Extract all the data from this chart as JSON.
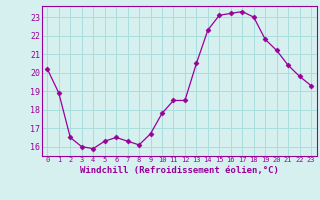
{
  "x": [
    0,
    1,
    2,
    3,
    4,
    5,
    6,
    7,
    8,
    9,
    10,
    11,
    12,
    13,
    14,
    15,
    16,
    17,
    18,
    19,
    20,
    21,
    22,
    23
  ],
  "y": [
    20.2,
    18.9,
    16.5,
    16.0,
    15.9,
    16.3,
    16.5,
    16.3,
    16.1,
    16.7,
    17.8,
    18.5,
    18.5,
    20.5,
    22.3,
    23.1,
    23.2,
    23.3,
    23.0,
    21.8,
    21.2,
    20.4,
    19.8,
    19.3
  ],
  "line_color": "#990099",
  "marker": "D",
  "marker_size": 2.5,
  "bg_color": "#d6f0f0",
  "grid_color": "#aadddd",
  "xlabel": "Windchill (Refroidissement éolien,°C)",
  "xlabel_color": "#990099",
  "ylabel_ticks": [
    16,
    17,
    18,
    19,
    20,
    21,
    22,
    23
  ],
  "xtick_labels": [
    "0",
    "1",
    "2",
    "3",
    "4",
    "5",
    "6",
    "7",
    "8",
    "9",
    "10",
    "11",
    "12",
    "13",
    "14",
    "15",
    "16",
    "17",
    "18",
    "19",
    "20",
    "21",
    "22",
    "23"
  ],
  "ylim": [
    15.5,
    23.6
  ],
  "xlim": [
    -0.5,
    23.5
  ],
  "ytick_fontsize": 6,
  "xtick_fontsize": 5,
  "xlabel_fontsize": 6.5
}
